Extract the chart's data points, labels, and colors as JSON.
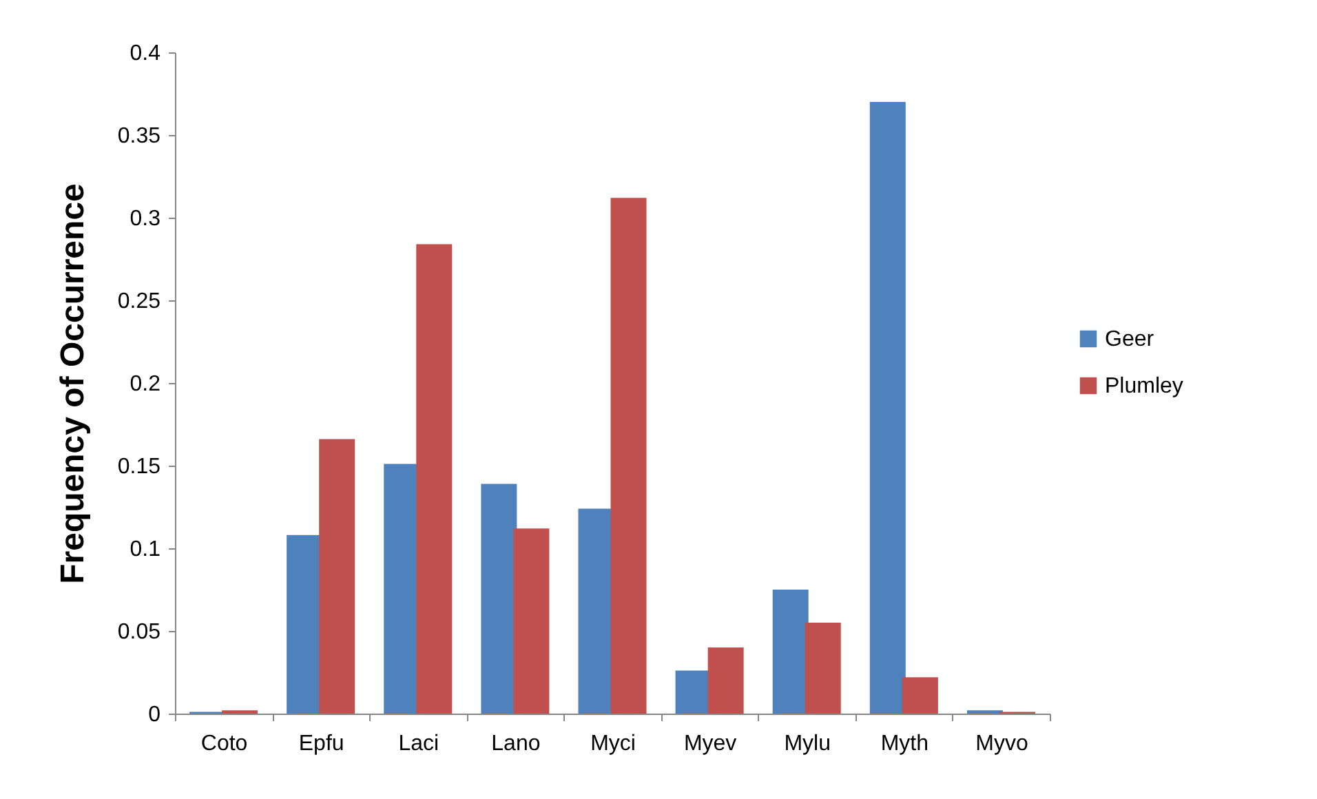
{
  "chart_data": {
    "type": "bar",
    "ylabel": "Frequency of Occurrence",
    "categories": [
      "Coto",
      "Epfu",
      "Laci",
      "Lano",
      "Myci",
      "Myev",
      "Mylu",
      "Myth",
      "Myvo"
    ],
    "series": [
      {
        "name": "Geer",
        "color": "#4f81bd",
        "values": [
          0.001,
          0.108,
          0.151,
          0.139,
          0.124,
          0.026,
          0.075,
          0.37,
          0.002
        ]
      },
      {
        "name": "Plumley",
        "color": "#c0504d",
        "values": [
          0.002,
          0.166,
          0.284,
          0.112,
          0.312,
          0.04,
          0.055,
          0.022,
          0.001
        ]
      }
    ],
    "ylim": [
      0,
      0.4
    ],
    "yticks": [
      0,
      0.05,
      0.1,
      0.15,
      0.2,
      0.25,
      0.3,
      0.35,
      0.4
    ],
    "grid": false,
    "legend": "right"
  }
}
